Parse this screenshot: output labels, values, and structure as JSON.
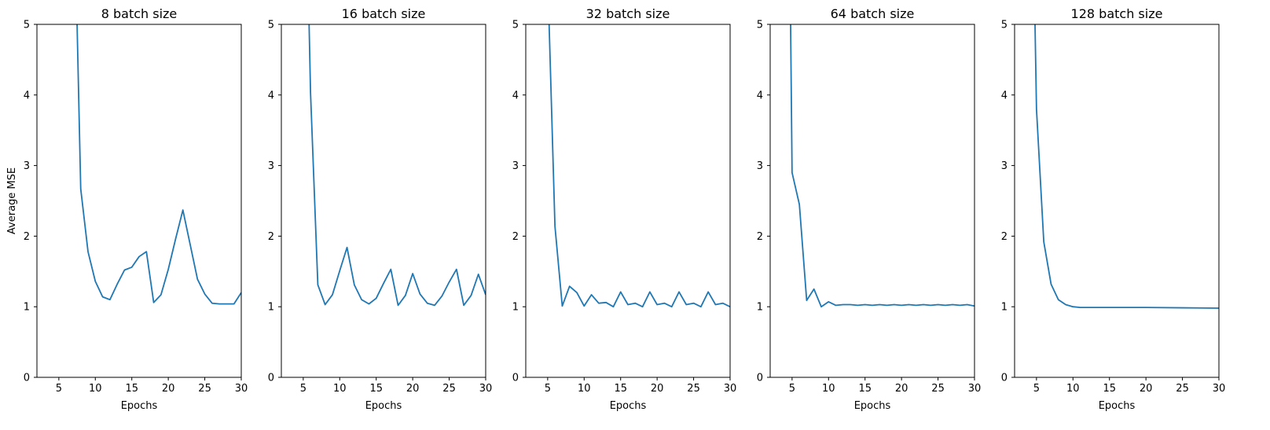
{
  "chart_data": [
    {
      "type": "line",
      "title": "8 batch size",
      "xlabel": "Epochs",
      "ylabel": "Average MSE",
      "xlim": [
        2,
        30
      ],
      "ylim": [
        0,
        5
      ],
      "xticks": [
        5,
        10,
        15,
        20,
        25,
        30
      ],
      "yticks": [
        0,
        1,
        2,
        3,
        4,
        5
      ],
      "color": "#1f77b4",
      "series": [
        {
          "x": [
            7.5,
            8,
            9,
            10,
            11,
            12,
            13,
            14,
            15,
            16,
            17,
            18,
            19,
            20,
            21,
            22,
            23,
            24,
            25,
            26,
            27,
            28,
            29,
            30
          ],
          "y": [
            5.0,
            2.67,
            1.78,
            1.36,
            1.14,
            1.1,
            1.32,
            1.52,
            1.56,
            1.71,
            1.78,
            1.06,
            1.17,
            1.53,
            1.96,
            2.37,
            1.88,
            1.39,
            1.18,
            1.05,
            1.04,
            1.04,
            1.04,
            1.2
          ]
        }
      ]
    },
    {
      "type": "line",
      "title": "16 batch size",
      "xlabel": "Epochs",
      "ylabel": "",
      "xlim": [
        2,
        30
      ],
      "ylim": [
        0,
        5
      ],
      "xticks": [
        5,
        10,
        15,
        20,
        25,
        30
      ],
      "yticks": [
        0,
        1,
        2,
        3,
        4,
        5
      ],
      "color": "#1f77b4",
      "series": [
        {
          "x": [
            5.8,
            6,
            7,
            8,
            9,
            10,
            11,
            12,
            13,
            14,
            15,
            16,
            17,
            18,
            19,
            20,
            21,
            22,
            23,
            24,
            25,
            26,
            27,
            28,
            29,
            30
          ],
          "y": [
            5.0,
            4.03,
            1.31,
            1.03,
            1.17,
            1.51,
            1.84,
            1.31,
            1.1,
            1.04,
            1.12,
            1.33,
            1.53,
            1.02,
            1.16,
            1.47,
            1.18,
            1.05,
            1.02,
            1.15,
            1.35,
            1.53,
            1.02,
            1.16,
            1.46,
            1.17
          ]
        }
      ]
    },
    {
      "type": "line",
      "title": "32 batch size",
      "xlabel": "Epochs",
      "ylabel": "",
      "xlim": [
        2,
        30
      ],
      "ylim": [
        0,
        5
      ],
      "xticks": [
        5,
        10,
        15,
        20,
        25,
        30
      ],
      "yticks": [
        0,
        1,
        2,
        3,
        4,
        5
      ],
      "color": "#1f77b4",
      "series": [
        {
          "x": [
            5.2,
            6,
            7,
            8,
            9,
            10,
            11,
            12,
            13,
            14,
            15,
            16,
            17,
            18,
            19,
            20,
            21,
            22,
            23,
            24,
            25,
            26,
            27,
            28,
            29,
            30
          ],
          "y": [
            5.0,
            2.14,
            1.01,
            1.29,
            1.2,
            1.01,
            1.17,
            1.05,
            1.06,
            1.0,
            1.21,
            1.03,
            1.05,
            1.0,
            1.21,
            1.03,
            1.05,
            1.0,
            1.21,
            1.03,
            1.05,
            1.0,
            1.21,
            1.03,
            1.05,
            1.0
          ]
        }
      ]
    },
    {
      "type": "line",
      "title": "64 batch size",
      "xlabel": "Epochs",
      "ylabel": "",
      "xlim": [
        2,
        30
      ],
      "ylim": [
        0,
        5
      ],
      "xticks": [
        5,
        10,
        15,
        20,
        25,
        30
      ],
      "yticks": [
        0,
        1,
        2,
        3,
        4,
        5
      ],
      "color": "#1f77b4",
      "series": [
        {
          "x": [
            4.8,
            5,
            6,
            7,
            8,
            9,
            10,
            11,
            12,
            13,
            14,
            15,
            16,
            17,
            18,
            19,
            20,
            21,
            22,
            23,
            24,
            25,
            26,
            27,
            28,
            29,
            30
          ],
          "y": [
            5.0,
            2.9,
            2.45,
            1.09,
            1.25,
            1.0,
            1.07,
            1.02,
            1.03,
            1.03,
            1.02,
            1.03,
            1.02,
            1.03,
            1.02,
            1.03,
            1.02,
            1.03,
            1.02,
            1.03,
            1.02,
            1.03,
            1.02,
            1.03,
            1.02,
            1.03,
            1.01
          ]
        }
      ]
    },
    {
      "type": "line",
      "title": "128 batch size",
      "xlabel": "Epochs",
      "ylabel": "",
      "xlim": [
        2,
        30
      ],
      "ylim": [
        0,
        5
      ],
      "xticks": [
        5,
        10,
        15,
        20,
        25,
        30
      ],
      "yticks": [
        0,
        1,
        2,
        3,
        4,
        5
      ],
      "color": "#1f77b4",
      "series": [
        {
          "x": [
            4.8,
            5,
            6,
            7,
            8,
            9,
            10,
            11,
            12,
            15,
            20,
            25,
            30
          ],
          "y": [
            5.0,
            3.8,
            1.92,
            1.32,
            1.1,
            1.03,
            1.0,
            0.99,
            0.99,
            0.99,
            0.99,
            0.985,
            0.98
          ]
        }
      ]
    }
  ]
}
